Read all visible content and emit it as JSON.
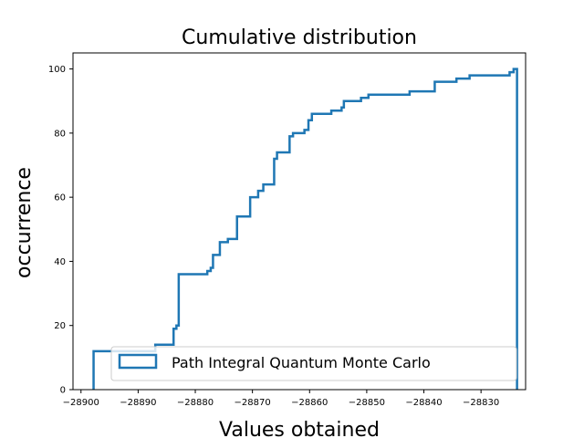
{
  "chart_data": {
    "type": "line",
    "drawstyle": "step",
    "title": "Cumulative distribution",
    "xlabel": "Values obtained",
    "ylabel": "occurrence",
    "xlim": [
      -28901.4,
      -28822.2
    ],
    "ylim": [
      0,
      105
    ],
    "xticks": [
      -28900,
      -28890,
      -28880,
      -28870,
      -28860,
      -28850,
      -28840,
      -28830
    ],
    "xtick_labels": [
      "−28900",
      "−28890",
      "−28880",
      "−28870",
      "−28860",
      "−28850",
      "−28840",
      "−28830"
    ],
    "yticks": [
      0,
      20,
      40,
      60,
      80,
      100
    ],
    "ytick_labels": [
      "0",
      "20",
      "40",
      "60",
      "80",
      "100"
    ],
    "grid": false,
    "legend_position": "lower-right",
    "series": [
      {
        "name": "Path Integral Quantum Monte Carlo",
        "color": "#1f77b4",
        "x": [
          -28897.8,
          -28897.8,
          -28887.0,
          -28883.8,
          -28883.3,
          -28882.9,
          -28877.9,
          -28877.3,
          -28876.9,
          -28875.7,
          -28874.3,
          -28872.7,
          -28870.4,
          -28869.0,
          -28868.1,
          -28866.2,
          -28865.7,
          -28863.5,
          -28862.9,
          -28861.6,
          -28860.9,
          -28860.2,
          -28859.6,
          -28856.2,
          -28854.4,
          -28854.0,
          -28851.0,
          -28849.7,
          -28842.5,
          -28838.1,
          -28834.3,
          -28832.0,
          -28825.0,
          -28824.3,
          -28823.7,
          -28823.7
        ],
        "y": [
          0,
          12,
          14,
          19,
          20,
          36,
          37,
          38,
          42,
          46,
          47,
          54,
          60,
          62,
          64,
          72,
          74,
          79,
          80,
          80,
          81,
          84,
          86,
          87,
          88,
          90,
          91,
          92,
          93,
          96,
          97,
          98,
          99,
          100,
          100,
          0
        ]
      }
    ]
  }
}
